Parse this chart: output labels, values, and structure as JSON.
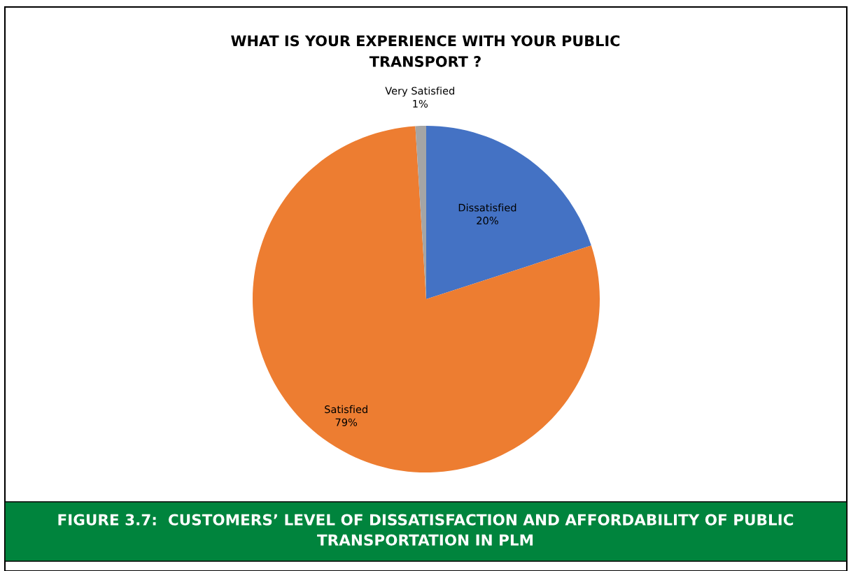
{
  "chart_data": {
    "type": "pie",
    "title": "WHAT IS YOUR EXPERIENCE WITH YOUR PUBLIC\nTRANSPORT ?",
    "categories": [
      "Dissatisfied",
      "Satisfied",
      "Very Satisfied"
    ],
    "values": [
      20,
      79,
      1
    ],
    "value_labels": [
      "20%",
      "79%",
      "1%"
    ],
    "colors": [
      "#4472c4",
      "#ed7d31",
      "#a5a5a5"
    ],
    "legend": false,
    "annotations": [
      "FIGURE 3.7:  CUSTOMERS’ LEVEL OF DISSATISFACTION AND AFFORDABILITY OF PUBLIC TRANSPORTATION IN PLM"
    ]
  }
}
